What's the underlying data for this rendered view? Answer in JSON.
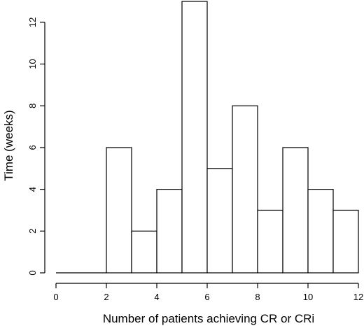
{
  "chart_data": {
    "type": "bar",
    "xlabel": "Number of patients achieving CR or CRi",
    "ylabel": "Time (weeks)",
    "bin_edges": [
      0,
      1,
      2,
      3,
      4,
      5,
      6,
      7,
      8,
      9,
      10,
      11,
      12
    ],
    "values": [
      0,
      0,
      6,
      2,
      4,
      13,
      5,
      8,
      3,
      6,
      4,
      3
    ],
    "xlim": [
      0,
      12
    ],
    "ylim": [
      0,
      13
    ],
    "x_ticks": [
      0,
      2,
      4,
      6,
      8,
      10,
      12
    ],
    "y_ticks": [
      0,
      2,
      4,
      6,
      8,
      10,
      12
    ],
    "grid": false,
    "colors": {
      "bar_fill": "#ffffff",
      "bar_stroke": "#000000",
      "axis": "#000000"
    }
  }
}
